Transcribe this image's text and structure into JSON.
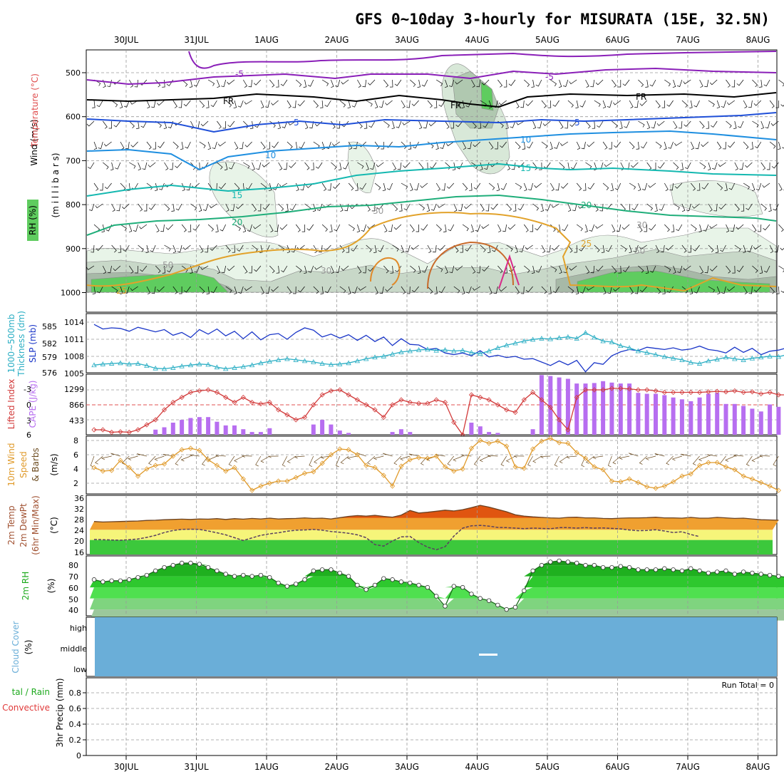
{
  "title": "GFS 0~10day 3-hourly for MISURATA (15E, 32.5N)",
  "dates": [
    "30JUL",
    "31JUL",
    "1AUG",
    "2AUG",
    "3AUG",
    "4AUG",
    "5AUG",
    "6AUG",
    "7AUG",
    "8AUG"
  ],
  "colors": {
    "purple_temp": "#8a1fb8",
    "blue_temp": "#1f4fd8",
    "light_blue_temp": "#1f8fe0",
    "teal_temp": "#14b8b0",
    "green_temp": "#1fae7a",
    "orange_temp": "#e2a22a",
    "rh_green": "#5fcc5f",
    "slp_blue": "#1a36c8",
    "thickness_cyan": "#2aaec4",
    "cape_purple": "#b76ef0",
    "lifted_red": "#d23a3a",
    "wind_orange": "#e09a2a",
    "cloud_blue": "#6aaed8"
  },
  "panel_labels": {
    "upper_wind": "Wind (m/s)",
    "upper_temp": "Temperature (°C)",
    "upper_rh": "RH (%)",
    "upper_pressure": "(m i l l i b a r s)",
    "slp": "SLP (mb)",
    "thickness_a": "1000~500mb",
    "thickness_b": "Thickness (dm)",
    "cape": "CAPE (J/kg)",
    "lifted": "Lifted Index",
    "wind10_a": "10m Wind",
    "wind10_b": "Speed",
    "wind10_c": "& Barbs",
    "wind10_unit": "(m/s)",
    "temp2m_a": "2m Temp",
    "temp2m_b": "2m DewPt",
    "temp2m_c": "(6hr Min/Max)",
    "temp2m_unit": "(°C)",
    "rh2m_a": "2m RH",
    "rh2m_unit": "(%)",
    "cloud_a": "Cloud Cover",
    "cloud_unit": "(%)",
    "precip_a": "tal / Rain",
    "precip_b": "Convective",
    "precip_c": "3hr Precip (mm)"
  },
  "contour_labels": {
    "minus5": "-5",
    "fr": "FR",
    "five": "5",
    "ten": "10",
    "fifteen": "15",
    "twenty": "20",
    "twentyfive": "25",
    "thirty": "30",
    "fifty": "50"
  },
  "cloud_levels": [
    "high",
    "middle",
    "low"
  ],
  "run_total": "Run Total = 0",
  "chart_data": [
    {
      "type": "contour",
      "name": "upper_air",
      "y_ticks": [
        "500",
        "600",
        "700",
        "800",
        "900",
        "1000"
      ],
      "levels_mb": [
        500,
        600,
        700,
        800,
        900,
        1000
      ],
      "temperature_isotherms_c": [
        -5,
        0,
        5,
        10,
        15,
        20,
        25
      ],
      "rh_shading_pct": [
        30,
        50,
        70,
        90
      ]
    },
    {
      "type": "line",
      "name": "slp_thickness",
      "y_left_ticks": [
        "585",
        "582",
        "579",
        "576"
      ],
      "y_right_ticks": [
        "1014",
        "1011",
        "1008",
        "1005"
      ],
      "slp_mb": [
        1013.6,
        1012.8,
        1013.0,
        1012.9,
        1012.4,
        1013.1,
        1012.7,
        1012.3,
        1012.7,
        1011.7,
        1012.2,
        1011.3,
        1012.7,
        1011.9,
        1012.8,
        1011.6,
        1012.4,
        1011.1,
        1012.3,
        1010.9,
        1011.8,
        1012.0,
        1011.0,
        1012.2,
        1013.0,
        1012.6,
        1011.4,
        1011.9,
        1011.2,
        1011.8,
        1010.8,
        1011.7,
        1010.6,
        1011.4,
        1009.9,
        1011.1,
        1010.1,
        1010.0,
        1009.2,
        1009.4,
        1008.6,
        1008.3,
        1008.6,
        1008.1,
        1009.0,
        1007.9,
        1008.2,
        1007.8,
        1008.0,
        1007.5,
        1007.6,
        1007.0,
        1006.4,
        1007.2,
        1006.5,
        1007.3,
        1005.3,
        1006.9,
        1006.6,
        1008.1,
        1008.8,
        1009.2,
        1009.0,
        1009.6,
        1009.4,
        1009.2,
        1009.5,
        1009.1,
        1009.3,
        1009.8,
        1009.2,
        1009.0,
        1008.6,
        1009.6,
        1008.7,
        1009.4,
        1008.3,
        1008.9,
        1009.1,
        1009.5,
        1009.1,
        1008.6
      ],
      "thickness_dm": [
        577.6,
        577.8,
        577.9,
        578.0,
        577.8,
        577.9,
        577.5,
        577.0,
        576.9,
        577.1,
        577.4,
        577.6,
        577.8,
        577.7,
        577.2,
        576.9,
        577.1,
        577.3,
        577.6,
        578.0,
        578.3,
        578.6,
        578.8,
        578.6,
        578.4,
        578.2,
        577.9,
        577.7,
        577.8,
        578.0,
        578.4,
        578.8,
        579.1,
        579.3,
        579.7,
        580.1,
        580.3,
        580.5,
        580.6,
        580.4,
        580.5,
        580.3,
        580.4,
        580.0,
        579.8,
        580.3,
        580.9,
        581.4,
        581.8,
        582.2,
        582.5,
        582.7,
        582.6,
        582.8,
        583.0,
        582.7,
        583.8,
        582.9,
        582.2,
        582.0,
        581.3,
        580.9,
        580.3,
        580.0,
        579.6,
        579.2,
        578.9,
        578.6,
        578.1,
        577.9,
        578.4,
        578.7,
        579.1,
        578.8,
        578.6,
        578.9,
        579.1,
        579.3,
        579.2,
        579.6,
        579.5,
        579.4
      ]
    },
    {
      "type": "bar",
      "name": "cape_lifted_index",
      "y_left_ticks": [
        "-3",
        "0",
        "3",
        "6"
      ],
      "y_right_ticks": [
        "1299",
        "866",
        "433"
      ],
      "cape_jkg": [
        0,
        0,
        0,
        0,
        0,
        0,
        0,
        110,
        160,
        260,
        320,
        360,
        380,
        380,
        280,
        200,
        200,
        120,
        60,
        60,
        140,
        0,
        0,
        0,
        0,
        220,
        320,
        220,
        90,
        40,
        0,
        0,
        0,
        0,
        60,
        120,
        60,
        0,
        0,
        0,
        0,
        0,
        0,
        260,
        180,
        60,
        40,
        0,
        0,
        0,
        120,
        1280,
        1260,
        1230,
        1200,
        1100,
        1100,
        1110,
        1150,
        1120,
        1100,
        1100,
        900,
        880,
        880,
        850,
        800,
        760,
        720,
        800,
        880,
        900,
        660,
        660,
        620,
        560,
        500,
        650,
        600,
        300,
        150,
        70
      ],
      "lifted_index": [
        5.0,
        5.0,
        5.5,
        5.4,
        5.5,
        5.0,
        4.0,
        3.0,
        1.0,
        -0.5,
        -1.5,
        -2.5,
        -2.8,
        -3.0,
        -2.5,
        -1.5,
        -0.5,
        -1.5,
        -0.5,
        -0.2,
        -0.5,
        1.0,
        2.0,
        3.0,
        2.5,
        0,
        -2.0,
        -2.8,
        -3.0,
        -2.0,
        -1.0,
        0,
        1.0,
        2.5,
        0,
        -1.0,
        -0.5,
        -0.3,
        -0.3,
        -1.0,
        -0.5,
        3.5,
        6.0,
        -2.0,
        -1.5,
        -1.0,
        0,
        1.0,
        1.5,
        -1.0,
        -2.5,
        -1.0,
        0.5,
        3.0,
        5.0,
        -1.5,
        -3.0,
        -3.0,
        -3.0,
        -3.3,
        -3.3,
        -3.2,
        -3.0,
        -3.0,
        -2.8,
        -2.5,
        -2.5,
        -2.5,
        -2.5,
        -2.5,
        -2.6,
        -2.7,
        -2.6,
        -2.8,
        -2.5,
        -2.6,
        -2.2,
        -2.5,
        -2.0,
        -2.0,
        -1.0,
        -0.8
      ]
    },
    {
      "type": "line",
      "name": "wind10m",
      "y_ticks": [
        "8",
        "6",
        "4",
        "2"
      ],
      "speed_ms": [
        4.2,
        3.7,
        3.8,
        5.2,
        4.2,
        3.0,
        4.0,
        4.5,
        4.7,
        5.8,
        6.7,
        6.9,
        6.6,
        5.3,
        4.5,
        3.7,
        4.2,
        2.6,
        1.0,
        1.6,
        2.0,
        2.3,
        2.3,
        2.8,
        3.4,
        3.6,
        4.8,
        6.0,
        6.8,
        6.7,
        6.0,
        4.5,
        4.2,
        3.1,
        1.6,
        4.4,
        5.3,
        5.6,
        5.5,
        5.8,
        4.3,
        3.7,
        4.0,
        6.9,
        8.0,
        7.6,
        7.9,
        7.2,
        4.3,
        4.1,
        6.8,
        7.9,
        8.3,
        7.7,
        7.6,
        6.3,
        5.5,
        4.3,
        3.9,
        2.3,
        2.2,
        2.6,
        2.1,
        1.5,
        1.3,
        1.6,
        2.2,
        3.0,
        3.3,
        4.5,
        4.9,
        4.9,
        4.3,
        3.9,
        3.0,
        2.6,
        2.1,
        1.6,
        1.0
      ]
    },
    {
      "type": "area",
      "name": "temp2m",
      "y_ticks": [
        "36",
        "32",
        "28",
        "24",
        "20",
        "16"
      ],
      "temp_c": [
        27.2,
        27.0,
        27.1,
        27.2,
        27.3,
        27.4,
        27.6,
        27.7,
        27.9,
        28.0,
        28.1,
        28.0,
        28.2,
        28.1,
        28.3,
        28.0,
        28.3,
        28.1,
        28.4,
        28.2,
        28.5,
        28.2,
        28.3,
        28.4,
        28.6,
        28.4,
        28.5,
        28.2,
        28.7,
        29.2,
        29.5,
        29.3,
        29.6,
        29.2,
        28.9,
        29.7,
        31.5,
        30.5,
        30.8,
        31.2,
        31.6,
        31.3,
        31.8,
        32.6,
        33.5,
        32.8,
        31.9,
        31.0,
        29.8,
        29.3,
        29.0,
        28.8,
        28.6,
        28.5,
        28.8,
        28.9,
        28.6,
        28.6,
        28.4,
        28.3,
        28.5,
        28.6,
        28.6,
        28.7,
        28.9,
        28.6,
        28.6,
        28.5,
        28.8,
        28.5,
        28.5,
        28.8,
        28.6,
        28.4,
        28.5,
        28.2,
        27.9,
        27.8,
        27.7
      ],
      "dewpt_c": [
        20.2,
        20.1,
        20.0,
        19.9,
        20.1,
        20.4,
        21.0,
        21.8,
        22.9,
        23.7,
        24.1,
        24.2,
        24.1,
        23.5,
        22.8,
        22.0,
        20.9,
        19.8,
        20.8,
        21.8,
        22.4,
        22.8,
        23.4,
        23.8,
        23.9,
        24.1,
        23.8,
        23.3,
        23.0,
        22.6,
        22.0,
        20.9,
        18.2,
        17.6,
        19.6,
        21.2,
        21.4,
        19.0,
        17.2,
        16.2,
        17.4,
        21.5,
        24.6,
        25.5,
        25.7,
        25.4,
        24.9,
        24.8,
        24.6,
        24.4,
        24.6,
        24.5,
        24.4,
        24.8,
        24.8,
        24.6,
        24.8,
        24.6,
        24.7,
        24.5,
        24.3,
        23.9,
        23.6,
        23.7,
        24.0,
        23.5,
        22.9,
        23.2,
        22.1,
        21.3
      ]
    },
    {
      "type": "area",
      "name": "rh2m",
      "y_ticks": [
        "80",
        "70",
        "60",
        "50",
        "40"
      ],
      "rh_pct": [
        67,
        65,
        66,
        66,
        67,
        69,
        71,
        75,
        78,
        80,
        82,
        82,
        81,
        78,
        75,
        72,
        70,
        71,
        70,
        71,
        69,
        64,
        61,
        63,
        67,
        75,
        76,
        76,
        73,
        70,
        62,
        58,
        62,
        68,
        67,
        65,
        64,
        62,
        60,
        52,
        43,
        61,
        60,
        54,
        50,
        48,
        44,
        40,
        42,
        57,
        75,
        80,
        83,
        84,
        83,
        82,
        80,
        80,
        78,
        78,
        79,
        78,
        76,
        76,
        76,
        77,
        76,
        75,
        77,
        75,
        73,
        74,
        75,
        72,
        74,
        73,
        72,
        71,
        70,
        69
      ],
      "shading_levels_pct": [
        40,
        50,
        60,
        70,
        80
      ]
    },
    {
      "type": "heatmap",
      "name": "cloud_cover",
      "y_ticks": [
        "high",
        "middle",
        "low"
      ]
    },
    {
      "type": "bar",
      "name": "precip_3hr",
      "y_ticks": [
        "0.8",
        "0.6",
        "0.4",
        "0.2",
        "0"
      ],
      "ylim": [
        0,
        1.0
      ],
      "values_mm": []
    }
  ]
}
